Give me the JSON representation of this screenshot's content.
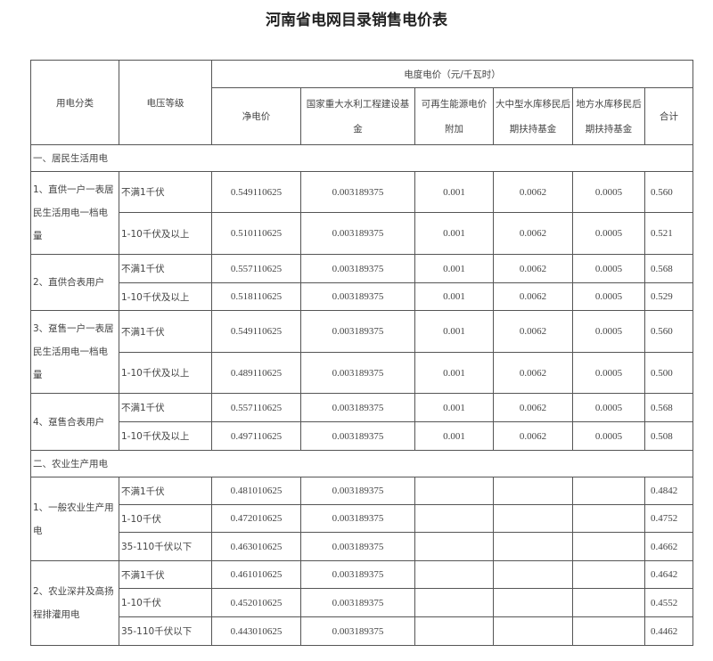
{
  "title": "河南省电网目录销售电价表",
  "header": {
    "category": "用电分类",
    "voltage": "电压等级",
    "group": "电度电价（元/千瓦时）",
    "cols": [
      "净电价",
      "国家重大水利工程建设基金",
      "可再生能源电价附加",
      "大中型水库移民后期扶持基金",
      "地方水库移民后期扶持基金",
      "合计"
    ]
  },
  "sections": [
    {
      "label": "一、居民生活用电",
      "groups": [
        {
          "label": "1、直供一户一表居民生活用电一档电量",
          "rows": [
            {
              "voltage": "不满1千伏",
              "v": [
                "0.549110625",
                "0.003189375",
                "0.001",
                "0.0062",
                "0.0005",
                "0.560"
              ]
            },
            {
              "voltage": "1-10千伏及以上",
              "v": [
                "0.510110625",
                "0.003189375",
                "0.001",
                "0.0062",
                "0.0005",
                "0.521"
              ]
            }
          ]
        },
        {
          "label": "2、直供合表用户",
          "rows": [
            {
              "voltage": "不满1千伏",
              "v": [
                "0.557110625",
                "0.003189375",
                "0.001",
                "0.0062",
                "0.0005",
                "0.568"
              ]
            },
            {
              "voltage": "1-10千伏及以上",
              "v": [
                "0.518110625",
                "0.003189375",
                "0.001",
                "0.0062",
                "0.0005",
                "0.529"
              ]
            }
          ]
        },
        {
          "label": "3、趸售一户一表居民生活用电一档电量",
          "rows": [
            {
              "voltage": "不满1千伏",
              "v": [
                "0.549110625",
                "0.003189375",
                "0.001",
                "0.0062",
                "0.0005",
                "0.560"
              ]
            },
            {
              "voltage": "1-10千伏及以上",
              "v": [
                "0.489110625",
                "0.003189375",
                "0.001",
                "0.0062",
                "0.0005",
                "0.500"
              ]
            }
          ]
        },
        {
          "label": "4、趸售合表用户",
          "rows": [
            {
              "voltage": "不满1千伏",
              "v": [
                "0.557110625",
                "0.003189375",
                "0.001",
                "0.0062",
                "0.0005",
                "0.568"
              ]
            },
            {
              "voltage": "1-10千伏及以上",
              "v": [
                "0.497110625",
                "0.003189375",
                "0.001",
                "0.0062",
                "0.0005",
                "0.508"
              ]
            }
          ]
        }
      ]
    },
    {
      "label": "二、农业生产用电",
      "groups": [
        {
          "label": "1、一般农业生产用电",
          "rows": [
            {
              "voltage": "不满1千伏",
              "v": [
                "0.481010625",
                "0.003189375",
                "",
                "",
                "",
                "0.4842"
              ]
            },
            {
              "voltage": "1-10千伏",
              "v": [
                "0.472010625",
                "0.003189375",
                "",
                "",
                "",
                "0.4752"
              ]
            },
            {
              "voltage": "35-110千伏以下",
              "v": [
                "0.463010625",
                "0.003189375",
                "",
                "",
                "",
                "0.4662"
              ]
            }
          ]
        },
        {
          "label": "2、农业深井及高扬程排灌用电",
          "rows": [
            {
              "voltage": "不满1千伏",
              "v": [
                "0.461010625",
                "0.003189375",
                "",
                "",
                "",
                "0.4642"
              ]
            },
            {
              "voltage": "1-10千伏",
              "v": [
                "0.452010625",
                "0.003189375",
                "",
                "",
                "",
                "0.4552"
              ]
            },
            {
              "voltage": "35-110千伏以下",
              "v": [
                "0.443010625",
                "0.003189375",
                "",
                "",
                "",
                "0.4462"
              ]
            }
          ]
        }
      ]
    }
  ]
}
